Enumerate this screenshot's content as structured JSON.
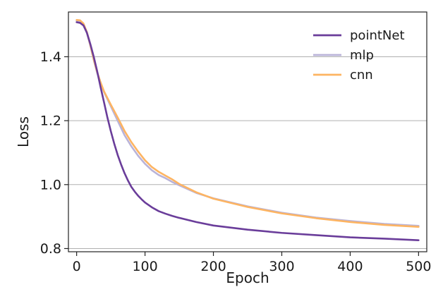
{
  "chart_data": {
    "type": "line",
    "title": "",
    "xlabel": "Epoch",
    "ylabel": "Loss",
    "xlim": [
      -12,
      512
    ],
    "ylim": [
      0.79,
      1.54
    ],
    "xticks": [
      0,
      100,
      200,
      300,
      400,
      500
    ],
    "yticks": [
      0.8,
      1.0,
      1.2,
      1.4
    ],
    "ytick_labels": [
      "0.8",
      "1.0",
      "1.2",
      "1.4"
    ],
    "grid": "horizontal",
    "legend_position": "top-right",
    "series": [
      {
        "name": "pointNet",
        "color": "#6a3d9a",
        "x": [
          0,
          5,
          10,
          15,
          20,
          25,
          30,
          35,
          40,
          45,
          50,
          55,
          60,
          65,
          70,
          75,
          80,
          85,
          90,
          95,
          100,
          110,
          120,
          130,
          140,
          150,
          175,
          200,
          250,
          300,
          350,
          400,
          450,
          500
        ],
        "y": [
          1.508,
          1.506,
          1.498,
          1.475,
          1.44,
          1.4,
          1.355,
          1.305,
          1.258,
          1.21,
          1.167,
          1.128,
          1.093,
          1.063,
          1.036,
          1.013,
          0.993,
          0.978,
          0.965,
          0.954,
          0.944,
          0.929,
          0.917,
          0.909,
          0.902,
          0.896,
          0.883,
          0.872,
          0.859,
          0.849,
          0.842,
          0.835,
          0.831,
          0.826
        ]
      },
      {
        "name": "mlp",
        "color": "#b9b3d8",
        "x": [
          0,
          5,
          10,
          15,
          20,
          25,
          30,
          35,
          40,
          50,
          60,
          70,
          80,
          90,
          100,
          110,
          120,
          130,
          140,
          150,
          175,
          200,
          250,
          300,
          350,
          400,
          450,
          500
        ],
        "y": [
          1.513,
          1.512,
          1.502,
          1.475,
          1.435,
          1.39,
          1.35,
          1.318,
          1.29,
          1.245,
          1.2,
          1.155,
          1.12,
          1.09,
          1.065,
          1.045,
          1.03,
          1.02,
          1.008,
          0.998,
          0.974,
          0.957,
          0.932,
          0.912,
          0.897,
          0.886,
          0.877,
          0.871
        ]
      },
      {
        "name": "cnn",
        "color": "#fdb462",
        "x": [
          0,
          5,
          10,
          15,
          20,
          25,
          30,
          35,
          40,
          50,
          60,
          70,
          80,
          90,
          100,
          110,
          120,
          130,
          140,
          150,
          175,
          200,
          250,
          300,
          350,
          400,
          450,
          500
        ],
        "y": [
          1.515,
          1.514,
          1.504,
          1.477,
          1.437,
          1.392,
          1.352,
          1.32,
          1.292,
          1.25,
          1.21,
          1.168,
          1.133,
          1.103,
          1.076,
          1.055,
          1.04,
          1.028,
          1.016,
          1.002,
          0.976,
          0.956,
          0.93,
          0.91,
          0.895,
          0.883,
          0.874,
          0.868
        ]
      }
    ]
  }
}
